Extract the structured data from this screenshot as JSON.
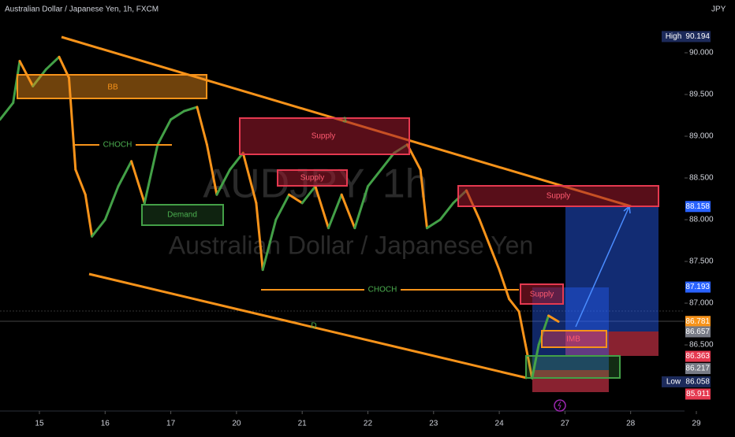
{
  "header": {
    "title": "Australian Dollar / Japanese Yen, 1h, FXCM",
    "currency": "JPY"
  },
  "watermark": {
    "symbol": "AUDJPY, 1h",
    "name": "Australian Dollar / Japanese Yen"
  },
  "annotations": {
    "bb": "BB",
    "choch_upper": "CHOCH",
    "choch_lower": "CHOCH",
    "demand": "Demand",
    "supply_large": "Supply",
    "supply_small": "Supply",
    "supply_right": "Supply",
    "supply_recent": "Supply",
    "imb": "IMB",
    "d": "D",
    "point": "3"
  },
  "chart_data": {
    "type": "line",
    "x": [
      -0.6,
      -0.4,
      -0.3,
      -0.1,
      0.1,
      0.3,
      0.45,
      0.55,
      0.7,
      0.8,
      1.0,
      1.2,
      1.4,
      1.6,
      1.8,
      2.0,
      2.2,
      2.4,
      2.55,
      2.7,
      2.9,
      3.1,
      3.3,
      3.4,
      3.6,
      3.8,
      4.0,
      4.2,
      4.4,
      4.6,
      4.8,
      5.0,
      5.2,
      5.4,
      5.6,
      5.8,
      5.9,
      6.1,
      6.3,
      6.5,
      6.7,
      6.9,
      7.0,
      7.15,
      7.3,
      7.4,
      7.5,
      7.6,
      7.75,
      7.9
    ],
    "values": [
      89.2,
      89.4,
      89.9,
      89.6,
      89.8,
      89.95,
      89.7,
      88.6,
      88.3,
      87.8,
      88.0,
      88.4,
      88.7,
      88.2,
      88.9,
      89.2,
      89.3,
      89.35,
      88.9,
      88.3,
      88.6,
      88.8,
      88.2,
      87.4,
      88.0,
      88.3,
      88.2,
      88.4,
      87.9,
      88.3,
      87.9,
      88.4,
      88.6,
      88.8,
      88.9,
      88.6,
      87.9,
      88.0,
      88.2,
      88.35,
      88.0,
      87.6,
      87.4,
      87.05,
      86.9,
      86.5,
      86.1,
      86.5,
      86.85,
      86.78
    ],
    "up_color": "#43a047",
    "down_color": "#f7931a",
    "xlim": [
      -0.6,
      9.82
    ],
    "ylim": [
      85.708,
      90.632
    ],
    "xticks": [
      {
        "value": 0,
        "label": "15"
      },
      {
        "value": 1,
        "label": "16"
      },
      {
        "value": 2,
        "label": "17"
      },
      {
        "value": 3,
        "label": "20"
      },
      {
        "value": 4,
        "label": "21"
      },
      {
        "value": 5,
        "label": "22"
      },
      {
        "value": 6,
        "label": "23"
      },
      {
        "value": 7,
        "label": "24"
      },
      {
        "value": 8,
        "label": "27"
      },
      {
        "value": 9,
        "label": "28"
      },
      {
        "value": 10,
        "label": "29"
      }
    ],
    "yticks": [
      {
        "value": 90,
        "label": "90.000"
      },
      {
        "value": 89.5,
        "label": "89.500"
      },
      {
        "value": 89,
        "label": "89.000"
      },
      {
        "value": 88.5,
        "label": "88.500"
      },
      {
        "value": 88,
        "label": "88.000"
      },
      {
        "value": 87.5,
        "label": "87.500"
      },
      {
        "value": 87,
        "label": "87.000"
      },
      {
        "value": 86.5,
        "label": "86.500"
      }
    ],
    "price_labels": [
      {
        "name": "High",
        "value": 90.194,
        "color": "#1c2a5a"
      },
      {
        "value": 88.158,
        "color": "#2962ff"
      },
      {
        "value": 87.193,
        "color": "#2962ff"
      },
      {
        "value": 86.781,
        "color": "#f7931a"
      },
      {
        "value": 86.657,
        "color": "#787b86"
      },
      {
        "value": 86.363,
        "color": "#e53950"
      },
      {
        "value": 86.217,
        "color": "#787b86"
      },
      {
        "name": "Low",
        "value": 86.058,
        "color": "#1c2a5a"
      },
      {
        "value": 85.911,
        "color": "#e53950"
      }
    ]
  }
}
